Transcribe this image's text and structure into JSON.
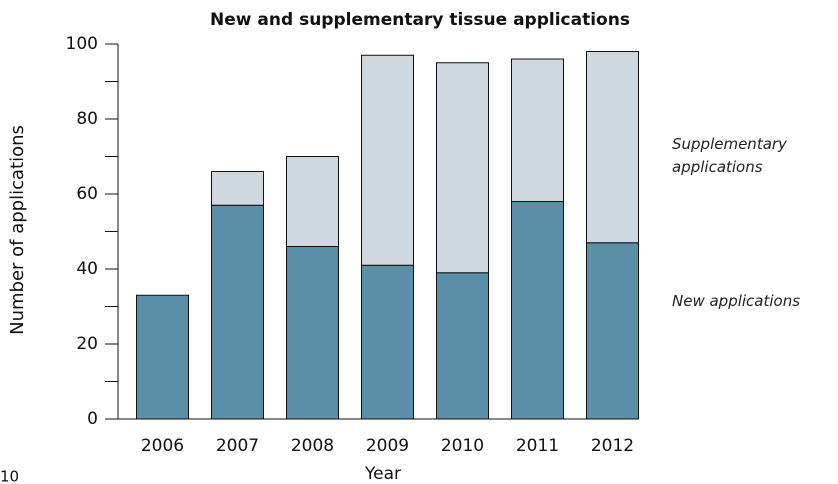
{
  "chart_data": {
    "type": "stacked_bar",
    "title": "New and supplementary tissue applications",
    "x_label": "Year",
    "y_label": "Number of applications",
    "categories": [
      "2006",
      "2007",
      "2008",
      "2009",
      "2010",
      "2011",
      "2012"
    ],
    "series": [
      {
        "name": "New applications",
        "color": "#5b8fa8",
        "values": [
          33,
          57,
          46,
          41,
          39,
          58,
          47
        ]
      },
      {
        "name": "Supplementary applications",
        "color": "#cfd8df",
        "values": [
          0,
          9,
          24,
          56,
          56,
          38,
          51
        ]
      }
    ],
    "ylim": [
      0,
      100
    ],
    "yticks": [
      0,
      20,
      40,
      60,
      80,
      100
    ],
    "minor_yticks": [
      10,
      30,
      50,
      70,
      90
    ],
    "grid": false,
    "legend": "right",
    "page_number": "10"
  }
}
